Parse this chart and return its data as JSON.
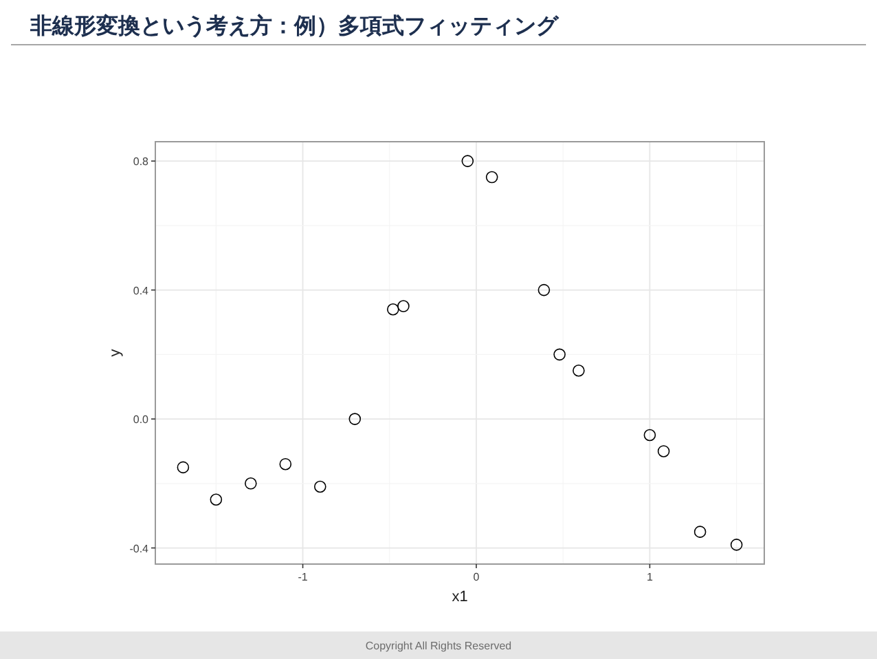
{
  "chart_data": {
    "type": "scatter",
    "title": "非線形変換という考え方：例）多項式フィッティング",
    "xlabel": "x1",
    "ylabel": "y",
    "x": [
      -1.69,
      -1.5,
      -1.3,
      -1.1,
      -0.9,
      -0.7,
      -0.48,
      -0.42,
      -0.05,
      0.09,
      0.39,
      0.48,
      0.59,
      1.0,
      1.08,
      1.29,
      1.5
    ],
    "series": [
      {
        "color": "#000000",
        "values": [
          -0.15,
          -0.25,
          -0.2,
          -0.14,
          -0.21,
          0.0,
          0.34,
          0.35,
          0.8,
          0.75,
          0.4,
          0.2,
          0.15,
          -0.05,
          -0.1,
          -0.35,
          -0.39
        ]
      }
    ],
    "marker": "circle",
    "grid": true,
    "xlim": [
      -1.85,
      1.66
    ],
    "ylim": [
      -0.45,
      0.86
    ],
    "xticks": [
      -1,
      0,
      1
    ],
    "yticks": [
      {
        "value": -0.4,
        "label": "-0.4"
      },
      {
        "value": 0,
        "label": "0.0"
      },
      {
        "value": 0.4,
        "label": "0.4"
      },
      {
        "value": 0.8,
        "label": "0.8"
      }
    ],
    "annotations": [
      "Copyright All Rights Reserved"
    ]
  }
}
